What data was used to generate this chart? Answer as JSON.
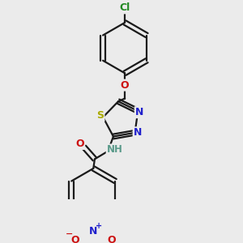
{
  "bg_color": "#ebebeb",
  "bond_color": "#1a1a1a",
  "bond_width": 1.6,
  "atom_colors": {
    "C": "#1a1a1a",
    "H": "#5a9a8a",
    "N": "#2020cc",
    "O": "#cc1111",
    "S": "#aaaa00",
    "Cl": "#228822"
  },
  "figsize": [
    3.0,
    3.0
  ],
  "dpi": 100
}
